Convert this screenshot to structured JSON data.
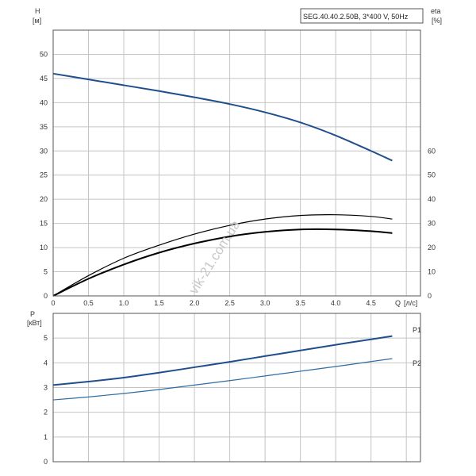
{
  "chart_data": [
    {
      "type": "line",
      "title": "SEG.40.40.2.50B, 3*400 V, 50Hz",
      "ylabel": "H",
      "yunit": "[м]",
      "y2label": "eta",
      "y2unit": "[%]",
      "xlabel": "Q",
      "xunit": "[л/с]",
      "xlim": [
        0,
        5.2
      ],
      "ylim": [
        0,
        55
      ],
      "y2lim": [
        0,
        110
      ],
      "xticks": [
        "0",
        "0.5",
        "1.0",
        "1.5",
        "2.0",
        "2.5",
        "3.0",
        "3.5",
        "4.0",
        "4.5"
      ],
      "yticks": [
        "0",
        "5",
        "10",
        "15",
        "20",
        "25",
        "30",
        "35",
        "40",
        "45",
        "50"
      ],
      "y2ticks": [
        "0",
        "10",
        "20",
        "30",
        "40",
        "50",
        "60"
      ],
      "grid": true,
      "series": [
        {
          "axis": "left",
          "color": "#1f4e8c",
          "x": [
            0,
            0.5,
            1.0,
            1.5,
            2.0,
            2.5,
            3.0,
            3.5,
            4.0,
            4.5,
            4.8
          ],
          "values": [
            46.0,
            44.8,
            43.6,
            42.4,
            41.1,
            39.7,
            38.0,
            35.9,
            33.2,
            30.0,
            28.0
          ]
        },
        {
          "axis": "right",
          "color": "#000000",
          "x": [
            0,
            0.5,
            1.0,
            1.5,
            2.0,
            2.5,
            3.0,
            3.5,
            4.0,
            4.5,
            4.8
          ],
          "values": [
            0,
            8.4,
            15.6,
            21.0,
            25.6,
            29.2,
            31.8,
            33.3,
            33.6,
            32.9,
            31.8
          ]
        },
        {
          "axis": "right",
          "color": "#000000",
          "x": [
            0,
            0.5,
            1.0,
            1.5,
            2.0,
            2.5,
            3.0,
            3.5,
            4.0,
            4.5,
            4.8
          ],
          "values": [
            0,
            7.1,
            13.0,
            17.9,
            21.7,
            24.6,
            26.5,
            27.5,
            27.5,
            26.8,
            26.0
          ]
        }
      ]
    },
    {
      "type": "line",
      "ylabel": "P",
      "yunit": "[кВт]",
      "xlim": [
        0,
        5.2
      ],
      "ylim": [
        0,
        6
      ],
      "yticks": [
        "0",
        "1",
        "2",
        "3",
        "4",
        "5"
      ],
      "grid": true,
      "series": [
        {
          "name": "P1",
          "color": "#1f4e8c",
          "x": [
            0,
            0.5,
            1.0,
            1.5,
            2.0,
            2.5,
            3.0,
            3.5,
            4.0,
            4.5,
            4.8
          ],
          "values": [
            3.1,
            3.24,
            3.4,
            3.6,
            3.82,
            4.04,
            4.27,
            4.5,
            4.73,
            4.95,
            5.08
          ]
        },
        {
          "name": "P2",
          "color": "#2e6da4",
          "x": [
            0,
            0.5,
            1.0,
            1.5,
            2.0,
            2.5,
            3.0,
            3.5,
            4.0,
            4.5,
            4.8
          ],
          "values": [
            2.5,
            2.62,
            2.76,
            2.92,
            3.1,
            3.28,
            3.47,
            3.66,
            3.85,
            4.05,
            4.17
          ]
        }
      ]
    }
  ],
  "watermark": "vik-21.com.ua"
}
